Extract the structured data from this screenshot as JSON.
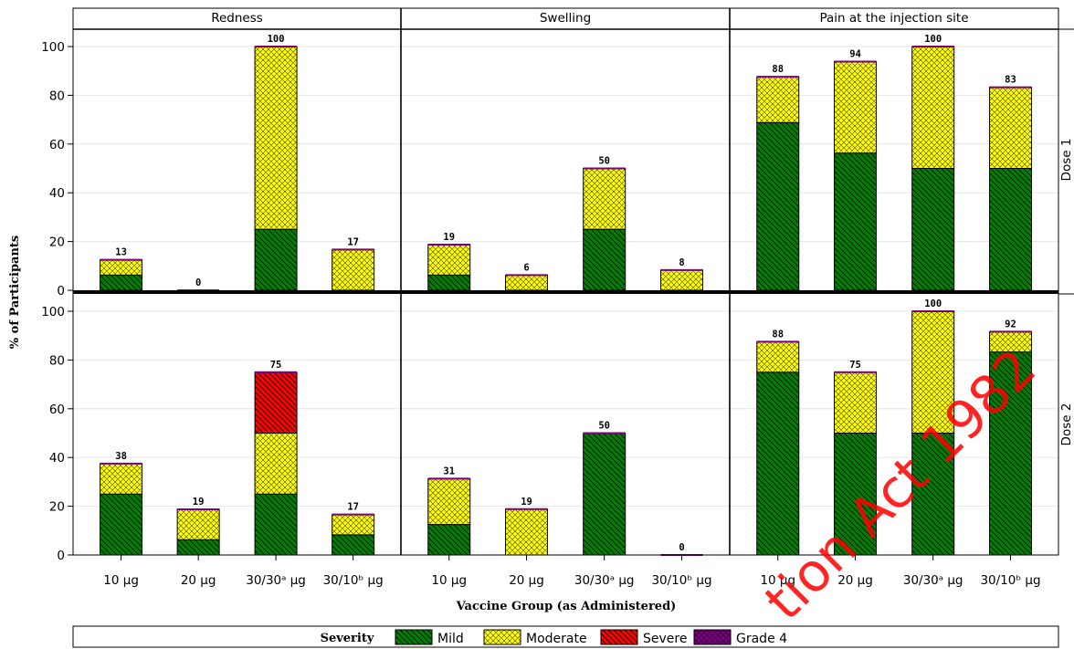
{
  "chart_data": {
    "type": "bar",
    "stacked": true,
    "xlabel": "Vaccine Group (as Administered)",
    "ylabel": "% of Participants",
    "ylim": [
      0,
      100
    ],
    "yticks": [
      "0",
      "20",
      "40",
      "60",
      "80",
      "100"
    ],
    "columns": [
      "Redness",
      "Swelling",
      "Pain at the injection site"
    ],
    "rows": [
      "Dose 1",
      "Dose 2"
    ],
    "categories": [
      "10 µg",
      "20 µg",
      "30/30ᵃ µg",
      "30/10ᵇ µg"
    ],
    "legend": {
      "title": "Severity",
      "placement": "bottom",
      "items": [
        {
          "name": "Mild",
          "color": "#008000",
          "pattern": "diag"
        },
        {
          "name": "Moderate",
          "color": "#ffff00",
          "pattern": "cross"
        },
        {
          "name": "Severe",
          "color": "#ff0000",
          "pattern": "diag"
        },
        {
          "name": "Grade 4",
          "color": "#7a0080",
          "pattern": "cross"
        }
      ]
    },
    "watermark": "tion Act 1982",
    "panels": [
      {
        "row": "Dose 1",
        "column": "Redness",
        "totals": [
          "13",
          "0",
          "100",
          "17"
        ],
        "series": {
          "Mild": [
            6.25,
            0,
            25,
            0
          ],
          "Moderate": [
            6.25,
            0,
            75,
            16.7
          ],
          "Severe": [
            0,
            0,
            0,
            0
          ],
          "Grade 4": [
            0,
            0,
            0,
            0
          ]
        }
      },
      {
        "row": "Dose 1",
        "column": "Swelling",
        "totals": [
          "19",
          "6",
          "50",
          "8"
        ],
        "series": {
          "Mild": [
            6.25,
            0,
            25,
            0
          ],
          "Moderate": [
            12.5,
            6.25,
            25,
            8.3
          ],
          "Severe": [
            0,
            0,
            0,
            0
          ],
          "Grade 4": [
            0,
            0,
            0,
            0
          ]
        }
      },
      {
        "row": "Dose 1",
        "column": "Pain at the injection site",
        "totals": [
          "88",
          "94",
          "100",
          "83"
        ],
        "series": {
          "Mild": [
            68.8,
            56.3,
            50,
            50
          ],
          "Moderate": [
            18.8,
            37.5,
            50,
            33.3
          ],
          "Severe": [
            0,
            0,
            0,
            0
          ],
          "Grade 4": [
            0,
            0,
            0,
            0
          ]
        }
      },
      {
        "row": "Dose 2",
        "column": "Redness",
        "totals": [
          "38",
          "19",
          "75",
          "17"
        ],
        "series": {
          "Mild": [
            25,
            6.25,
            25,
            8.3
          ],
          "Moderate": [
            12.5,
            12.5,
            25,
            8.3
          ],
          "Severe": [
            0,
            0,
            25,
            0
          ],
          "Grade 4": [
            0,
            0,
            0,
            0
          ]
        }
      },
      {
        "row": "Dose 2",
        "column": "Swelling",
        "totals": [
          "31",
          "19",
          "50",
          "0"
        ],
        "series": {
          "Mild": [
            12.5,
            0,
            50,
            0
          ],
          "Moderate": [
            18.8,
            18.8,
            0,
            0
          ],
          "Severe": [
            0,
            0,
            0,
            0
          ],
          "Grade 4": [
            0,
            0,
            0,
            0
          ]
        }
      },
      {
        "row": "Dose 2",
        "column": "Pain at the injection site",
        "totals": [
          "88",
          "75",
          "100",
          "92"
        ],
        "series": {
          "Mild": [
            75,
            50,
            50,
            83.3
          ],
          "Moderate": [
            12.5,
            25,
            50,
            8.3
          ],
          "Severe": [
            0,
            0,
            0,
            0
          ],
          "Grade 4": [
            0,
            0,
            0,
            0
          ]
        }
      }
    ]
  }
}
